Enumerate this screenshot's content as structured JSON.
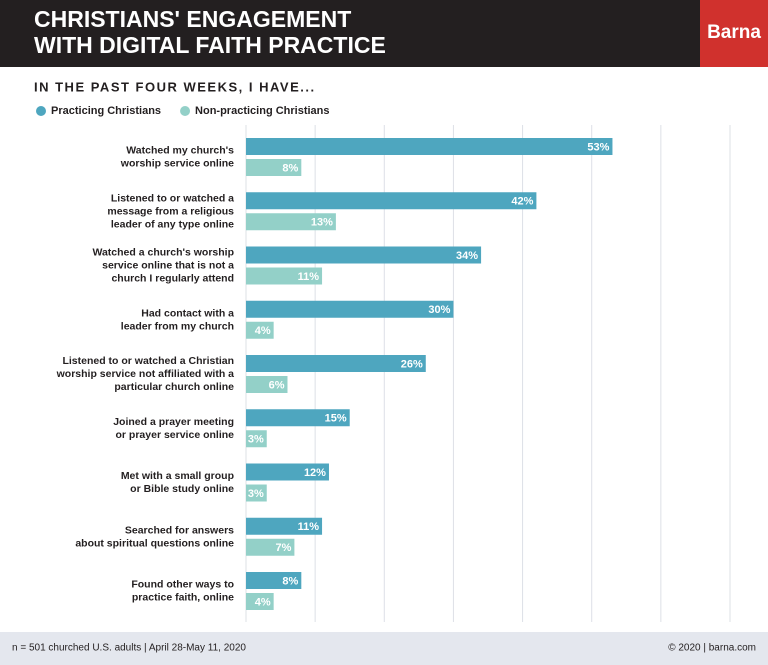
{
  "chart_data": {
    "type": "bar",
    "orientation": "horizontal",
    "title": "CHRISTIANS' ENGAGEMENT\nWITH DIGITAL FAITH PRACTICE",
    "logo": "Barna",
    "subtitle": "IN THE PAST FOUR WEEKS, I HAVE...",
    "categories": [
      "Watched my church's\nworship service online",
      "Listened to or watched a\nmessage from a religious\nleader of any type online",
      "Watched a church's worship\nservice online that is not a\nchurch I regularly attend",
      "Had contact with a\nleader from my church",
      "Listened to or watched a Christian\nworship service not affiliated with a\nparticular church online",
      "Joined a prayer meeting\nor prayer service online",
      "Met with a small group\nor Bible study online",
      "Searched for answers\nabout spiritual questions online",
      "Found other ways to\npractice faith, online"
    ],
    "series": [
      {
        "name": "Practicing Christians",
        "color": "#4ea6bf",
        "values": [
          53,
          42,
          34,
          30,
          26,
          15,
          12,
          11,
          8
        ],
        "value_labels": [
          "53%",
          "42%",
          "34%",
          "30%",
          "26%",
          "15%",
          "12%",
          "11%",
          "8%"
        ]
      },
      {
        "name": "Non-practicing Christians",
        "color": "#93d0c8",
        "values": [
          8,
          13,
          11,
          4,
          6,
          3,
          3,
          7,
          4
        ],
        "value_labels": [
          "8%",
          "13%",
          "11%",
          "4%",
          "6%",
          "3%",
          "3%",
          "7%",
          "4%"
        ]
      }
    ],
    "xlim": [
      0,
      70
    ],
    "xticks": [
      0,
      10,
      20,
      30,
      40,
      50,
      60,
      70
    ],
    "grid": true,
    "note": "n = 501 churched U.S. adults | April 28-May 11, 2020",
    "source": "© 2020 | barna.com"
  }
}
